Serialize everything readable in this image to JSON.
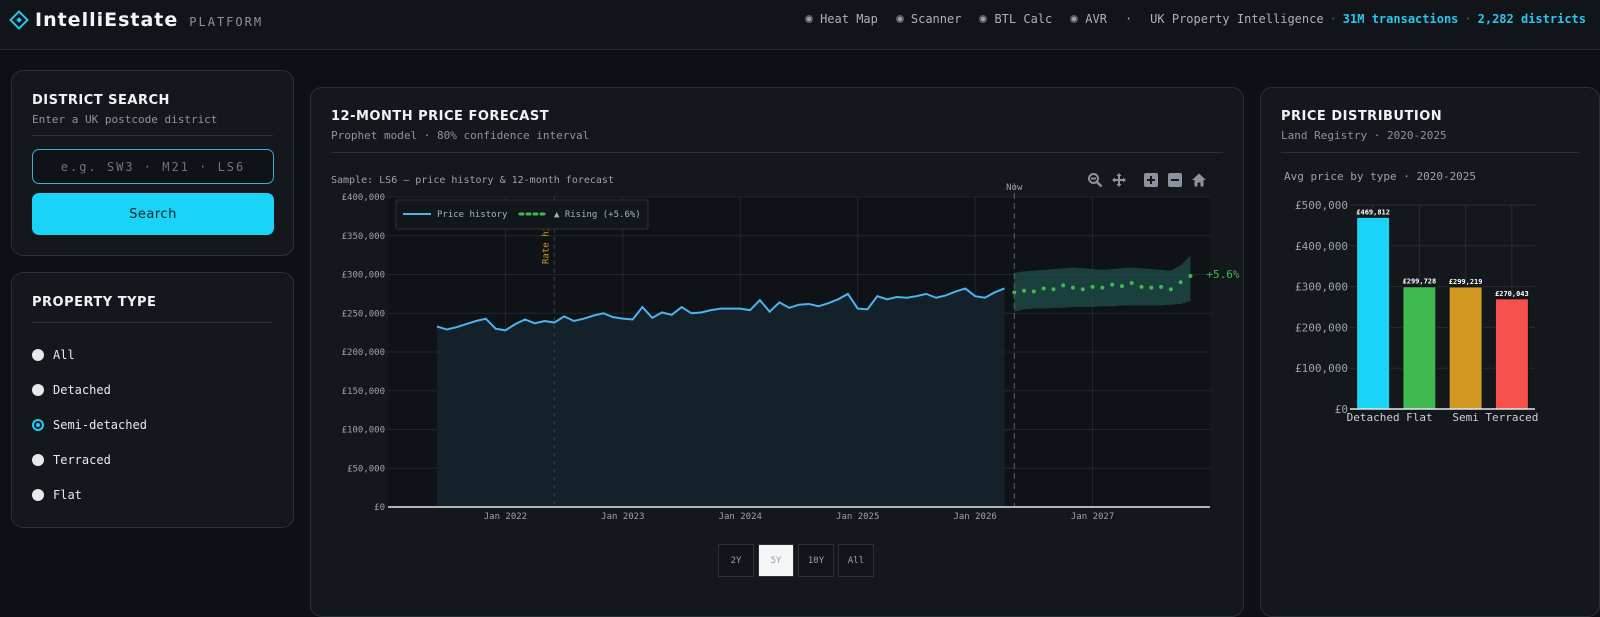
{
  "header": {
    "brand": "IntelliEstate",
    "brand_sub": "PLATFORM",
    "nav": [
      {
        "label": "Heat Map"
      },
      {
        "label": "Scanner"
      },
      {
        "label": "BTL Calc"
      },
      {
        "label": "AVR"
      }
    ],
    "stats_label": "UK Property Intelligence",
    "stat_transactions": "31M transactions",
    "stat_districts": "2,282 districts"
  },
  "district_search": {
    "title": "DISTRICT SEARCH",
    "subtitle": "Enter a UK postcode district",
    "placeholder": "e.g. SW3 · M21 · LS6",
    "button": "Search"
  },
  "property_type": {
    "title": "PROPERTY TYPE",
    "options": [
      {
        "label": "All",
        "checked": false
      },
      {
        "label": "Detached",
        "checked": false
      },
      {
        "label": "Semi-detached",
        "checked": true
      },
      {
        "label": "Terraced",
        "checked": false
      },
      {
        "label": "Flat",
        "checked": false
      }
    ]
  },
  "forecast": {
    "title": "12-MONTH PRICE FORECAST",
    "subtitle": "Prophet model · 80% confidence interval",
    "sample_label": "Sample: LS6 — price history & 12-month forecast",
    "now_label": "Now",
    "rate_label": "Rate hikes",
    "forecast_label": "+5.6%",
    "range_buttons": [
      "2Y",
      "5Y",
      "10Y",
      "All"
    ],
    "active_range": "5Y",
    "colors": {
      "history": "#4db3ee",
      "forecast": "#3fb950",
      "band": "#1f4f4a",
      "annotation": "#d29922"
    }
  },
  "distribution": {
    "title": "PRICE DISTRIBUTION",
    "subtitle": "Land Registry · 2020-2025",
    "colors": [
      "#1ad4f8",
      "#3fb950",
      "#d29922",
      "#f5514d"
    ]
  },
  "chart_data": [
    {
      "type": "line",
      "x_ticks": [
        "Jan 2022",
        "Jan 2023",
        "Jan 2024",
        "Jan 2025",
        "Jan 2026",
        "Jan 2027"
      ],
      "y_ticks": [
        "£0",
        "£50,000",
        "£100,000",
        "£150,000",
        "£200,000",
        "£250,000",
        "£300,000",
        "£350,000",
        "£400,000"
      ],
      "ylim": [
        0,
        400000
      ],
      "grid": true,
      "legend_position": "top-left",
      "series": [
        {
          "name": "Price history",
          "start": "2021-06",
          "values": [
            233000,
            229000,
            232000,
            236000,
            240000,
            243000,
            230000,
            228000,
            236000,
            242000,
            237000,
            240000,
            238000,
            246000,
            240000,
            243000,
            247000,
            250000,
            245000,
            243000,
            242000,
            258000,
            244000,
            251000,
            248000,
            258000,
            250000,
            251000,
            254000,
            256000,
            256000,
            256000,
            254000,
            267000,
            252000,
            264000,
            257000,
            261000,
            262000,
            259000,
            263000,
            268000,
            275000,
            256000,
            255000,
            272000,
            268000,
            271000,
            270000,
            272000,
            275000,
            270000,
            273000,
            278000,
            282000,
            272000,
            270000,
            277000,
            282000
          ]
        },
        {
          "name": "▲ Rising (+5.6%)",
          "start": "2026-05",
          "values": [
            277000,
            279000,
            278000,
            282000,
            281000,
            286000,
            283000,
            281000,
            284000,
            283000,
            287000,
            285000,
            289000,
            284000,
            283000,
            284000,
            281000,
            290000,
            298000
          ],
          "band_lower": [
            252000,
            255000,
            256000,
            256000,
            257000,
            257000,
            258000,
            258000,
            258000,
            259000,
            259000,
            260000,
            260000,
            260000,
            260000,
            260000,
            261000,
            262000,
            266000
          ],
          "band_upper": [
            302000,
            304000,
            305000,
            306000,
            307000,
            308000,
            309000,
            308000,
            307000,
            306000,
            307000,
            308000,
            309000,
            308000,
            307000,
            306000,
            305000,
            312000,
            324000
          ]
        }
      ],
      "annotations": [
        {
          "x": "2022-06",
          "label": "Rate hikes"
        },
        {
          "x": "2026-05",
          "label": "Now"
        }
      ]
    },
    {
      "type": "bar",
      "title": "Avg price by type · 2020-2025",
      "categories": [
        "Detached",
        "Flat",
        "Semi",
        "Terraced"
      ],
      "values": [
        469812,
        299728,
        299219,
        270043
      ],
      "data_labels": [
        "£469,812",
        "£299,728",
        "£299,219",
        "£270,043"
      ],
      "y_ticks": [
        "£0",
        "£100,000",
        "£200,000",
        "£300,000",
        "£400,000",
        "£500,000"
      ],
      "ylim": [
        0,
        500000
      ],
      "grid": true
    }
  ]
}
